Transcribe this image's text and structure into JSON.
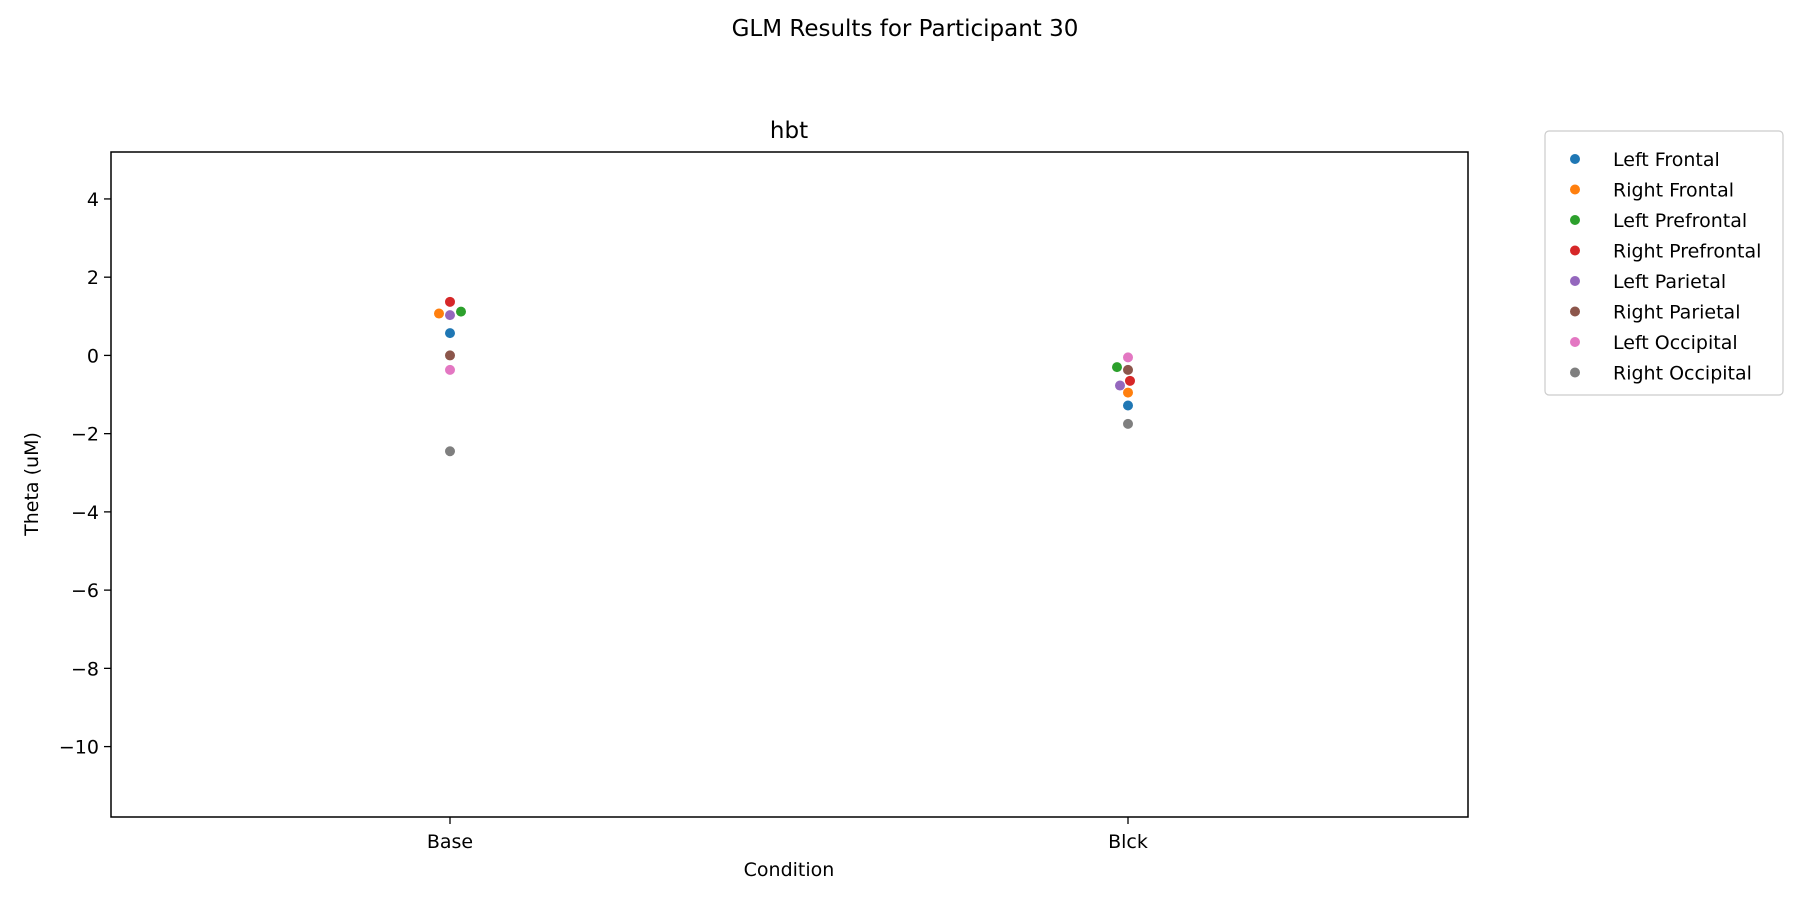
{
  "figure": {
    "suptitle": "GLM Results for Participant 30"
  },
  "chart_data": {
    "type": "scatter",
    "subtype": "stripplot",
    "title": "hbt",
    "xlabel": "Condition",
    "ylabel": "Theta (uM)",
    "categories": [
      "Base",
      "Blck"
    ],
    "ylim": [
      -11.8,
      5.2
    ],
    "yticks": [
      4,
      2,
      0,
      -2,
      -4,
      -6,
      -8,
      -10
    ],
    "ytick_labels": [
      "4",
      "2",
      "0",
      "−2",
      "−4",
      "−6",
      "−8",
      "−10"
    ],
    "grid": false,
    "legend_position": "outside-top-right",
    "series": [
      {
        "name": "Left Frontal",
        "color": "#1f77b4",
        "values": [
          0.57,
          -1.28
        ],
        "jitter": [
          0,
          0
        ]
      },
      {
        "name": "Right Frontal",
        "color": "#ff7f0e",
        "values": [
          1.07,
          -0.95
        ],
        "jitter": [
          -0.11,
          0
        ]
      },
      {
        "name": "Left Prefrontal",
        "color": "#2ca02c",
        "values": [
          1.12,
          -0.3
        ],
        "jitter": [
          0.11,
          -0.11
        ]
      },
      {
        "name": "Right Prefrontal",
        "color": "#d62728",
        "values": [
          1.37,
          -0.65
        ],
        "jitter": [
          0,
          0.02
        ]
      },
      {
        "name": "Left Parietal",
        "color": "#9467bd",
        "values": [
          1.03,
          -0.77
        ],
        "jitter": [
          0,
          -0.08
        ]
      },
      {
        "name": "Right Parietal",
        "color": "#8c564b",
        "values": [
          0.0,
          -0.37
        ],
        "jitter": [
          0,
          0
        ]
      },
      {
        "name": "Left Occipital",
        "color": "#e377c2",
        "values": [
          -0.37,
          -0.05
        ],
        "jitter": [
          0,
          0
        ]
      },
      {
        "name": "Right Occipital",
        "color": "#7f7f7f",
        "values": [
          -2.45,
          -1.75
        ],
        "jitter": [
          0,
          0
        ]
      }
    ]
  }
}
